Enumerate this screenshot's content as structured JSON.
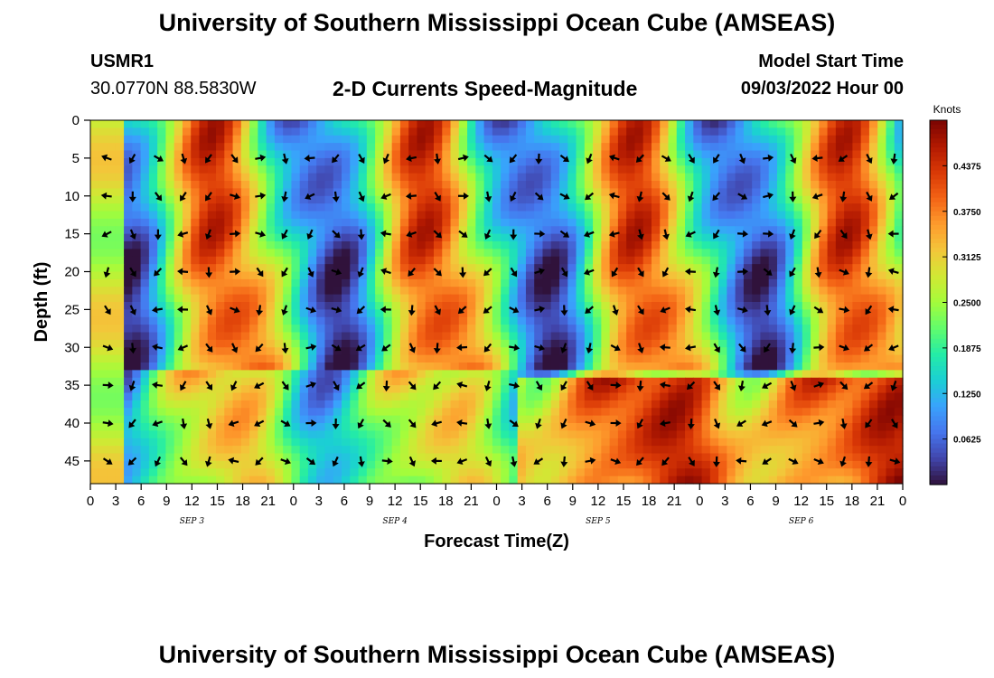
{
  "page": {
    "title": "University of Southern Mississippi Ocean Cube (AMSEAS)",
    "footer_title": "University of Southern Mississippi Ocean Cube (AMSEAS)",
    "station_id": "USMR1",
    "station_coords": "30.0770N  88.5830W",
    "product": "2-D Currents Speed-Magnitude",
    "model_start_label": "Model Start Time",
    "model_start_value": "09/03/2022 Hour 00"
  },
  "chart_data": {
    "type": "heatmap",
    "title": "2-D Currents Speed-Magnitude",
    "xlabel": "Forecast Time(Z)",
    "ylabel": "Depth (ft)",
    "x_tick_labels": [
      "0",
      "3",
      "6",
      "9",
      "12",
      "15",
      "18",
      "21",
      "0",
      "3",
      "6",
      "9",
      "12",
      "15",
      "18",
      "21",
      "0",
      "3",
      "6",
      "9",
      "12",
      "15",
      "18",
      "21",
      "0",
      "3",
      "6",
      "9",
      "12",
      "15",
      "18",
      "21",
      "0"
    ],
    "x_hours": [
      0,
      96
    ],
    "day_labels": [
      "SEP 3",
      "SEP 4",
      "SEP 5",
      "SEP 6"
    ],
    "y_tick_labels": [
      "0",
      "5",
      "10",
      "15",
      "20",
      "25",
      "30",
      "35",
      "40",
      "45"
    ],
    "y_values": [
      0,
      5,
      10,
      15,
      20,
      25,
      30,
      35,
      40,
      45
    ],
    "ylim": [
      0,
      48
    ],
    "colorbar": {
      "label": "Knots",
      "ticks": [
        "0.4375",
        "0.3750",
        "0.3125",
        "0.2500",
        "0.1875",
        "0.1250",
        "0.0625"
      ],
      "tick_values": [
        0.4375,
        0.375,
        0.3125,
        0.25,
        0.1875,
        0.125,
        0.0625
      ],
      "range": [
        0,
        0.5
      ],
      "colors": [
        "#30123b",
        "#4145ab",
        "#4675ed",
        "#39a2fc",
        "#1bcfd4",
        "#24eca6",
        "#61fc6c",
        "#a4fc3b",
        "#d1e834",
        "#f3c63a",
        "#fe9b2d",
        "#f36315",
        "#d93806",
        "#b11901",
        "#7a0402"
      ]
    },
    "arrow_grid": {
      "depths": [
        5,
        10,
        15,
        20,
        25,
        30,
        35,
        40,
        45
      ],
      "first_hour": 2,
      "step_hours": 3
    }
  }
}
